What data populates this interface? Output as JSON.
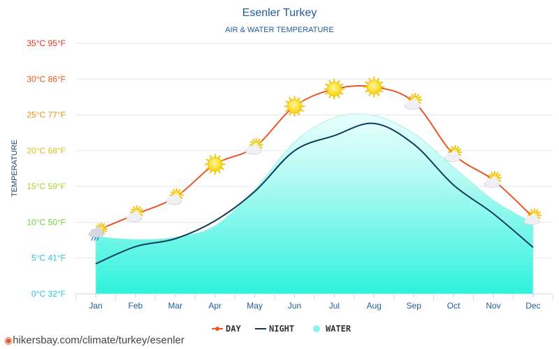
{
  "chart_data": {
    "type": "line",
    "title": "Esenler Turkey",
    "subtitle": "AIR & WATER TEMPERATURE",
    "ylabel": "TEMPERATURE",
    "categories": [
      "Jan",
      "Feb",
      "Mar",
      "Apr",
      "May",
      "Jun",
      "Jul",
      "Aug",
      "Sep",
      "Oct",
      "Nov",
      "Dec"
    ],
    "ylim": [
      0,
      35
    ],
    "y_ticks": [
      {
        "value": 0,
        "label": "0°C 32°F",
        "color": "#2ec4d8"
      },
      {
        "value": 5,
        "label": "5°C 41°F",
        "color": "#2ec4d8"
      },
      {
        "value": 10,
        "label": "10°C 50°F",
        "color": "#6ed23a"
      },
      {
        "value": 15,
        "label": "15°C 59°F",
        "color": "#a7d42c"
      },
      {
        "value": 20,
        "label": "20°C 68°F",
        "color": "#d9c21a"
      },
      {
        "value": 25,
        "label": "25°C 77°F",
        "color": "#ee8f16"
      },
      {
        "value": 30,
        "label": "30°C 86°F",
        "color": "#e85b1a"
      },
      {
        "value": 35,
        "label": "35°C 95°F",
        "color": "#e0351a"
      }
    ],
    "series": [
      {
        "name": "DAY",
        "color": "#e8562a",
        "values": [
          8.8,
          11.1,
          13.5,
          18.1,
          20.5,
          26.2,
          28.6,
          28.9,
          26.8,
          19.5,
          15.9,
          10.7
        ]
      },
      {
        "name": "NIGHT",
        "color": "#0b3d5c",
        "values": [
          4.2,
          6.6,
          7.7,
          10.2,
          14.3,
          20.0,
          22.1,
          23.8,
          20.9,
          15.2,
          11.2,
          6.5
        ]
      },
      {
        "name": "WATER",
        "color": "#8af3ee",
        "values": [
          8.0,
          7.6,
          7.9,
          9.5,
          14.6,
          21.2,
          24.6,
          24.9,
          22.4,
          17.7,
          13.1,
          9.9
        ]
      }
    ],
    "weather_icons": [
      "cloud-rain-icon",
      "sun-cloud-icon",
      "sun-cloud-icon",
      "sun-icon",
      "sun-cloud-icon",
      "sun-icon",
      "sun-icon",
      "sun-icon",
      "sun-cloud-icon",
      "sun-cloud-icon",
      "sun-cloud-icon",
      "sun-cloud-icon"
    ],
    "legend": [
      "DAY",
      "NIGHT",
      "WATER"
    ]
  },
  "source": "hikersbay.com/climate/turkey/esenler"
}
